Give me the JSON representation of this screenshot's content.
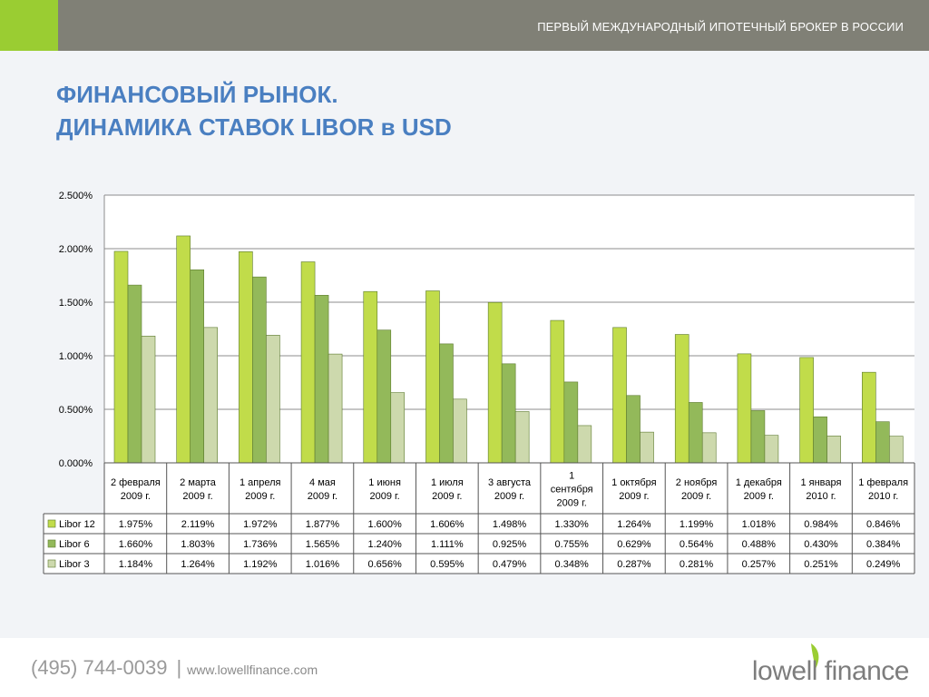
{
  "header": {
    "tagline": "ПЕРВЫЙ МЕЖДУНАРОДНЫЙ ИПОТЕЧНЫЙ БРОКЕР В РОССИИ"
  },
  "title": {
    "line1": "ФИНАНСОВЫЙ РЫНОК.",
    "line2": "ДИНАМИКА СТАВОК LIBOR в USD"
  },
  "chart_data": {
    "type": "bar",
    "categories": [
      "2 февраля 2009 г.",
      "2 марта 2009 г.",
      "1 апреля 2009 г.",
      "4 мая 2009 г.",
      "1 июня 2009 г.",
      "1 июля 2009 г.",
      "3 августа 2009 г.",
      "1 сентября 2009 г.",
      "1 октября 2009 г.",
      "2 ноября 2009 г.",
      "1 декабря 2009 г.",
      "1 января 2010 г.",
      "1 февраля 2010 г."
    ],
    "category_lines": [
      [
        "2 февраля",
        "2009 г."
      ],
      [
        "2 марта",
        "2009 г."
      ],
      [
        "1 апреля",
        "2009 г."
      ],
      [
        "4 мая",
        "2009 г."
      ],
      [
        "1 июня",
        "2009 г."
      ],
      [
        "1 июля",
        "2009 г."
      ],
      [
        "3 августа",
        "2009 г."
      ],
      [
        "1",
        "сентября",
        "2009 г."
      ],
      [
        "1 октября",
        "2009 г."
      ],
      [
        "2 ноября",
        "2009 г."
      ],
      [
        "1 декабря",
        "2009 г."
      ],
      [
        "1 января",
        "2010 г."
      ],
      [
        "1 февраля",
        "2010 г."
      ]
    ],
    "series": [
      {
        "name": "Libor 12",
        "color": "#c1dc4a",
        "values": [
          1.975,
          2.119,
          1.972,
          1.877,
          1.6,
          1.606,
          1.498,
          1.33,
          1.264,
          1.199,
          1.018,
          0.984,
          0.846
        ],
        "labels": [
          "1.975%",
          "2.119%",
          "1.972%",
          "1.877%",
          "1.600%",
          "1.606%",
          "1.498%",
          "1.330%",
          "1.264%",
          "1.199%",
          "1.018%",
          "0.984%",
          "0.846%"
        ]
      },
      {
        "name": "Libor 6",
        "color": "#93b95a",
        "values": [
          1.66,
          1.803,
          1.736,
          1.565,
          1.24,
          1.111,
          0.925,
          0.755,
          0.629,
          0.564,
          0.488,
          0.43,
          0.384
        ],
        "labels": [
          "1.660%",
          "1.803%",
          "1.736%",
          "1.565%",
          "1.240%",
          "1.111%",
          "0.925%",
          "0.755%",
          "0.629%",
          "0.564%",
          "0.488%",
          "0.430%",
          "0.384%"
        ]
      },
      {
        "name": "Libor 3",
        "color": "#cdd9ad",
        "values": [
          1.184,
          1.264,
          1.192,
          1.016,
          0.656,
          0.595,
          0.479,
          0.348,
          0.287,
          0.281,
          0.257,
          0.251,
          0.249
        ],
        "labels": [
          "1.184%",
          "1.264%",
          "1.192%",
          "1.016%",
          "0.656%",
          "0.595%",
          "0.479%",
          "0.348%",
          "0.287%",
          "0.281%",
          "0.257%",
          "0.251%",
          "0.249%"
        ]
      }
    ],
    "ylim": [
      0,
      2.5
    ],
    "yticks": [
      0,
      0.5,
      1.0,
      1.5,
      2.0,
      2.5
    ],
    "ytick_labels": [
      "0.000%",
      "0.500%",
      "1.000%",
      "1.500%",
      "2.000%",
      "2.500%"
    ],
    "grid": true,
    "legend": "data-table"
  },
  "footer": {
    "phone": "(495) 744-0039",
    "separator": "|",
    "website": "www.lowellfinance.com",
    "logo_text": "lowell finance"
  }
}
